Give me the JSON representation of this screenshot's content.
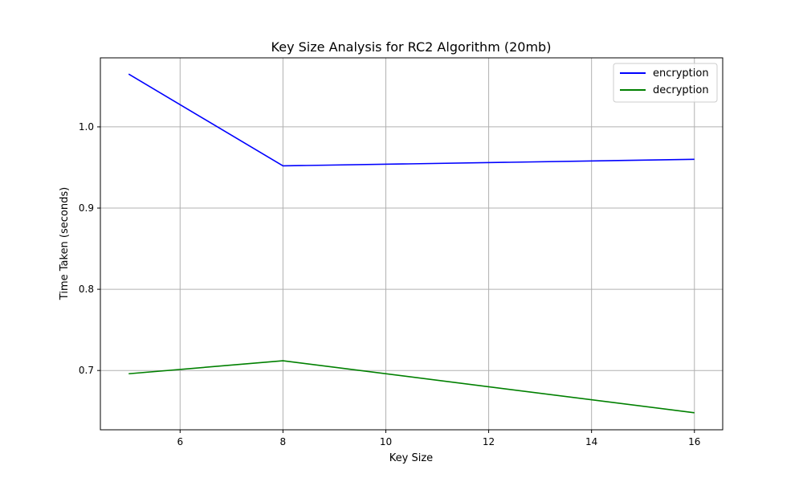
{
  "chart_data": {
    "type": "line",
    "title": "Key Size Analysis for RC2 Algorithm (20mb)",
    "xlabel": "Key Size",
    "ylabel": "Time Taken (seconds)",
    "xlim": [
      4.45,
      16.55
    ],
    "ylim": [
      0.627,
      1.085
    ],
    "xticks": [
      6,
      8,
      10,
      12,
      14,
      16
    ],
    "xtick_labels": [
      "6",
      "8",
      "10",
      "12",
      "14",
      "16"
    ],
    "yticks": [
      0.7,
      0.8,
      0.9,
      1.0
    ],
    "ytick_labels": [
      "0.7",
      "0.8",
      "0.9",
      "1.0"
    ],
    "grid": true,
    "legend_position": "top-right",
    "series": [
      {
        "name": "encryption",
        "color": "#0000ff",
        "x": [
          5,
          8,
          16
        ],
        "y": [
          1.065,
          0.952,
          0.96
        ]
      },
      {
        "name": "decryption",
        "color": "#008000",
        "x": [
          5,
          8,
          16
        ],
        "y": [
          0.696,
          0.712,
          0.648
        ]
      }
    ]
  }
}
